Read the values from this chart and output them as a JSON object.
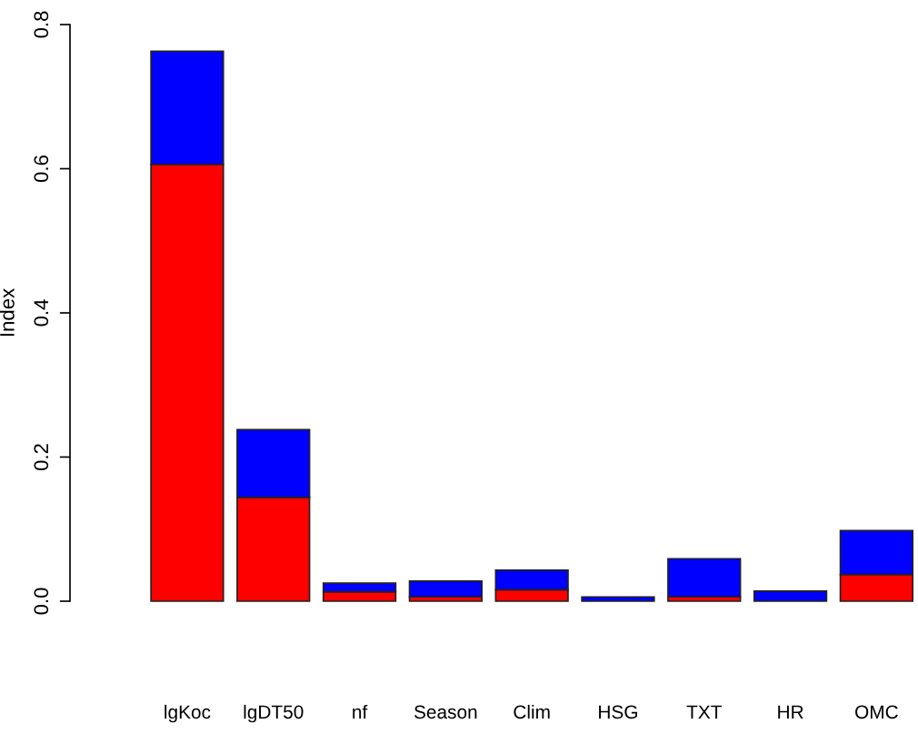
{
  "chart_data": {
    "type": "bar",
    "stacked": true,
    "ylabel": "Index",
    "categories": [
      "lgKoc",
      "lgDT50",
      "nf",
      "Season",
      "Clim",
      "HSG",
      "TXT",
      "HR",
      "OMC"
    ],
    "series": [
      {
        "color": "#ff0000",
        "values": [
          0.606,
          0.144,
          0.013,
          0.006,
          0.016,
          0,
          0.006,
          0,
          0.037
        ]
      },
      {
        "color": "#0000ff",
        "values": [
          0.157,
          0.094,
          0.012,
          0.022,
          0.027,
          0.006,
          0.053,
          0.014,
          0.061
        ]
      }
    ],
    "ylim": [
      0,
      0.8
    ],
    "yticks": [
      {
        "value": 0,
        "label": "0.0"
      },
      0.2,
      0.4,
      0.6,
      0.8
    ],
    "grid": false,
    "legend": false
  }
}
